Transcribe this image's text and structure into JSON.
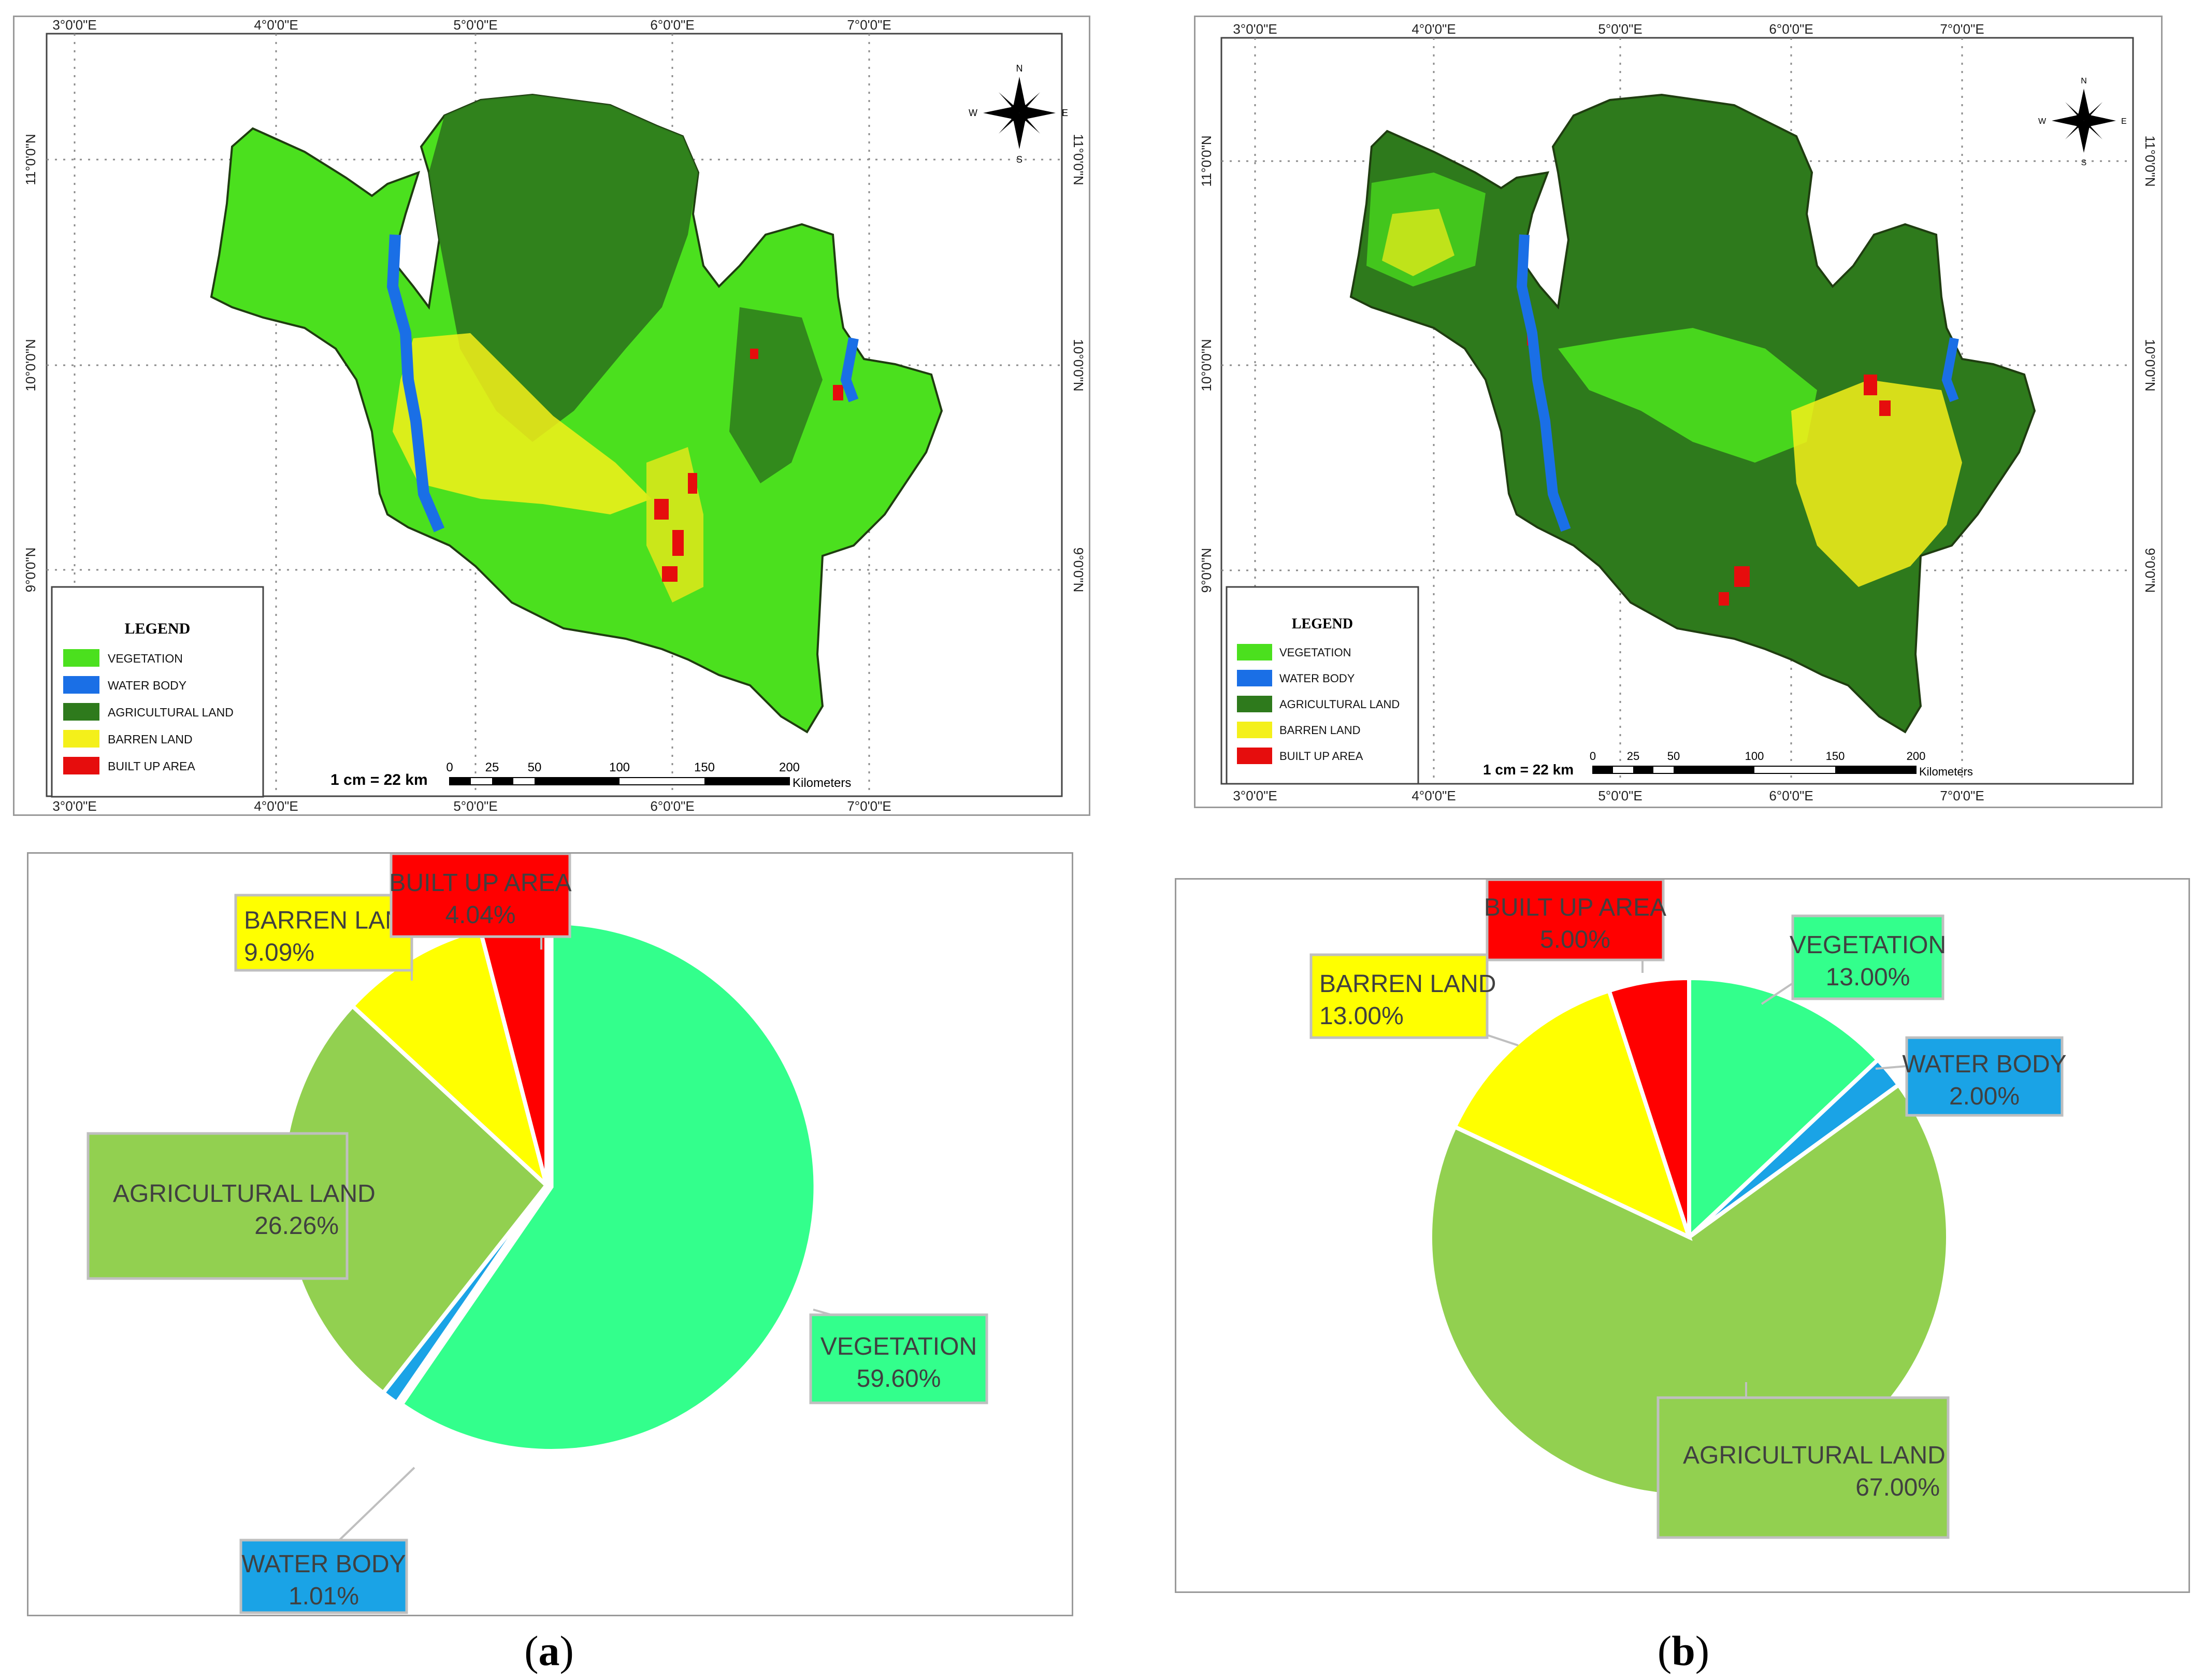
{
  "legend_title": "LEGEND",
  "classes": [
    {
      "label": "VEGETATION",
      "color": "#4be01e"
    },
    {
      "label": "WATER BODY",
      "color": "#1a6fe6"
    },
    {
      "label": "AGRICULTURAL LAND",
      "color": "#2e7a1c"
    },
    {
      "label": "BARREN LAND",
      "color": "#f4f01a"
    },
    {
      "label": "BUILT UP AREA",
      "color": "#e60d0d"
    }
  ],
  "scale": {
    "text": "1 cm = 22 km",
    "ticks": [
      "0",
      "25",
      "50",
      "100",
      "150",
      "200"
    ],
    "unit": "Kilometers"
  },
  "compass": {
    "n": "N",
    "s": "S",
    "e": "E",
    "w": "W"
  },
  "map_a": {
    "lon_labels": [
      "3°0'0\"E",
      "4°0'0\"E",
      "5°0'0\"E",
      "6°0'0\"E",
      "7°0'0\"E"
    ],
    "lat_labels": [
      "11°0'0\"N",
      "10°0'0\"N",
      "9°0'0\"N"
    ]
  },
  "map_b": {
    "lon_labels": [
      "3°0'0\"E",
      "4°0'0\"E",
      "5°0'0\"E",
      "6°0'0\"E",
      "7°0'0\"E"
    ],
    "lat_labels": [
      "11°0'0\"N",
      "10°0'0\"N",
      "9°0'0\"N"
    ]
  },
  "chart_data": [
    {
      "type": "pie",
      "panel": "a",
      "title": "",
      "slices": [
        {
          "label": "VEGETATION",
          "value": 59.6,
          "text": "59.60%",
          "color": "#33ff8c"
        },
        {
          "label": "WATER BODY",
          "value": 1.01,
          "text": "1.01%",
          "color": "#1aa3e6"
        },
        {
          "label": "AGRICULTURAL LAND",
          "value": 26.26,
          "text": "26.26%",
          "color": "#92d050"
        },
        {
          "label": "BARREN LAND",
          "value": 9.09,
          "text": "9.09%",
          "color": "#ffff00"
        },
        {
          "label": "BUILT UP AREA",
          "value": 4.04,
          "text": "4.04%",
          "color": "#ff0000"
        }
      ]
    },
    {
      "type": "pie",
      "panel": "b",
      "title": "",
      "slices": [
        {
          "label": "VEGETATION",
          "value": 13.0,
          "text": "13.00%",
          "color": "#33ff8c"
        },
        {
          "label": "WATER BODY",
          "value": 2.0,
          "text": "2.00%",
          "color": "#1aa3e6"
        },
        {
          "label": "AGRICULTURAL LAND",
          "value": 67.0,
          "text": "67.00%",
          "color": "#92d050"
        },
        {
          "label": "BARREN LAND",
          "value": 13.0,
          "text": "13.00%",
          "color": "#ffff00"
        },
        {
          "label": "BUILT UP AREA",
          "value": 5.0,
          "text": "5.00%",
          "color": "#ff0000"
        }
      ]
    }
  ],
  "subfigure_labels": {
    "a": "a",
    "b": "b"
  }
}
